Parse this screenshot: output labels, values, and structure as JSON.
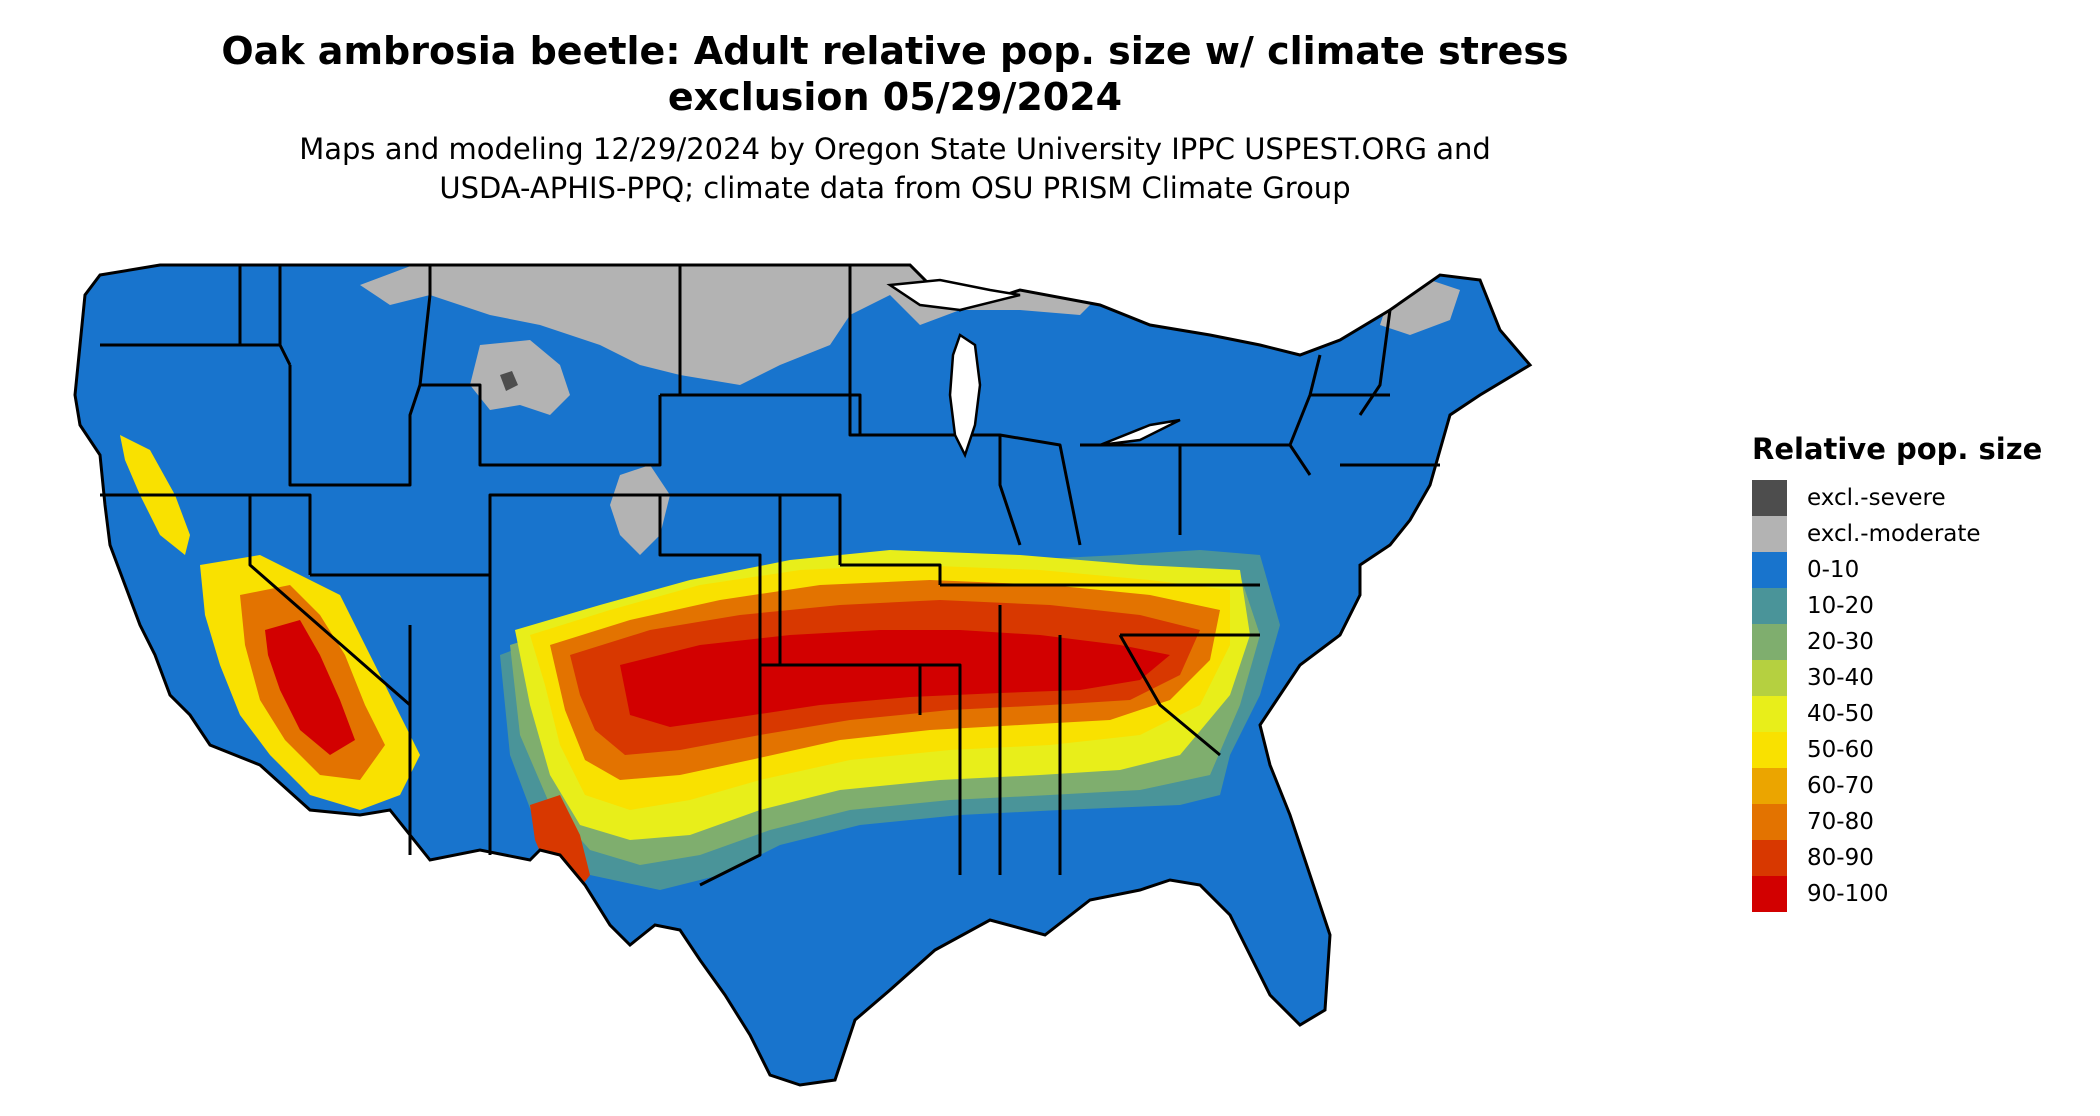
{
  "title_line1": "Oak ambrosia beetle: Adult relative pop. size w/ climate stress",
  "title_line2": "exclusion 05/29/2024",
  "subtitle_line1": "Maps and modeling 12/29/2024 by Oregon State University IPPC USPEST.ORG and",
  "subtitle_line2": "USDA-APHIS-PPQ; climate data from OSU PRISM Climate Group",
  "legend": {
    "title": "Relative pop. size",
    "items": [
      {
        "label": "excl.-severe",
        "color": "#4d4d4d"
      },
      {
        "label": "excl.-moderate",
        "color": "#b3b3b3"
      },
      {
        "label": "0-10",
        "color": "#1874cd"
      },
      {
        "label": "10-20",
        "color": "#4a9499"
      },
      {
        "label": "20-30",
        "color": "#7fae6e"
      },
      {
        "label": "30-40",
        "color": "#b5d040"
      },
      {
        "label": "40-50",
        "color": "#e8ee1a"
      },
      {
        "label": "50-60",
        "color": "#f9e100"
      },
      {
        "label": "60-70",
        "color": "#eba500"
      },
      {
        "label": "70-80",
        "color": "#e37300"
      },
      {
        "label": "80-90",
        "color": "#d83800"
      },
      {
        "label": "90-100",
        "color": "#d20000"
      }
    ]
  }
}
